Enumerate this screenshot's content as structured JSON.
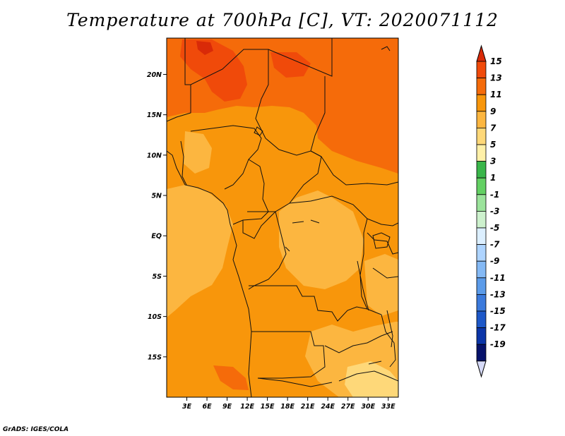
{
  "title": "Temperature at 700hPa [C], VT: 2020071112",
  "credit": "GrADS: IGES/COLA",
  "map": {
    "lat_range": [
      -20,
      24.5
    ],
    "lon_range": [
      0,
      34.5
    ],
    "lat_ticks": [
      {
        "value": 20,
        "label": "20N"
      },
      {
        "value": 15,
        "label": "15N"
      },
      {
        "value": 10,
        "label": "10N"
      },
      {
        "value": 5,
        "label": "5N"
      },
      {
        "value": 0,
        "label": "EQ"
      },
      {
        "value": -5,
        "label": "5S"
      },
      {
        "value": -10,
        "label": "10S"
      },
      {
        "value": -15,
        "label": "15S"
      }
    ],
    "lon_ticks": [
      {
        "value": 3,
        "label": "3E"
      },
      {
        "value": 6,
        "label": "6E"
      },
      {
        "value": 9,
        "label": "9E"
      },
      {
        "value": 12,
        "label": "12E"
      },
      {
        "value": 15,
        "label": "15E"
      },
      {
        "value": 18,
        "label": "18E"
      },
      {
        "value": 21,
        "label": "21E"
      },
      {
        "value": 24,
        "label": "24E"
      },
      {
        "value": 27,
        "label": "27E"
      },
      {
        "value": 30,
        "label": "30E"
      },
      {
        "value": 33,
        "label": "33E"
      }
    ]
  },
  "colorbar": {
    "labels": [
      "15",
      "13",
      "11",
      "9",
      "7",
      "5",
      "3",
      "1",
      "-1",
      "-3",
      "-5",
      "-7",
      "-9",
      "-11",
      "-13",
      "-15",
      "-17",
      "-19"
    ],
    "colors": [
      "#d92a08",
      "#f04a0a",
      "#f56b0a",
      "#f8960b",
      "#fcb640",
      "#fed879",
      "#fff0a8",
      "#3ab64a",
      "#63d063",
      "#9be39b",
      "#cdf1cd",
      "#dcefff",
      "#aed4ff",
      "#84b9f5",
      "#5b9be9",
      "#3b7adc",
      "#1d58c8",
      "#0b35a8",
      "#06126b"
    ],
    "top_arrow_color": "#d92a08",
    "bottom_arrow_color": "#d6daf8"
  }
}
